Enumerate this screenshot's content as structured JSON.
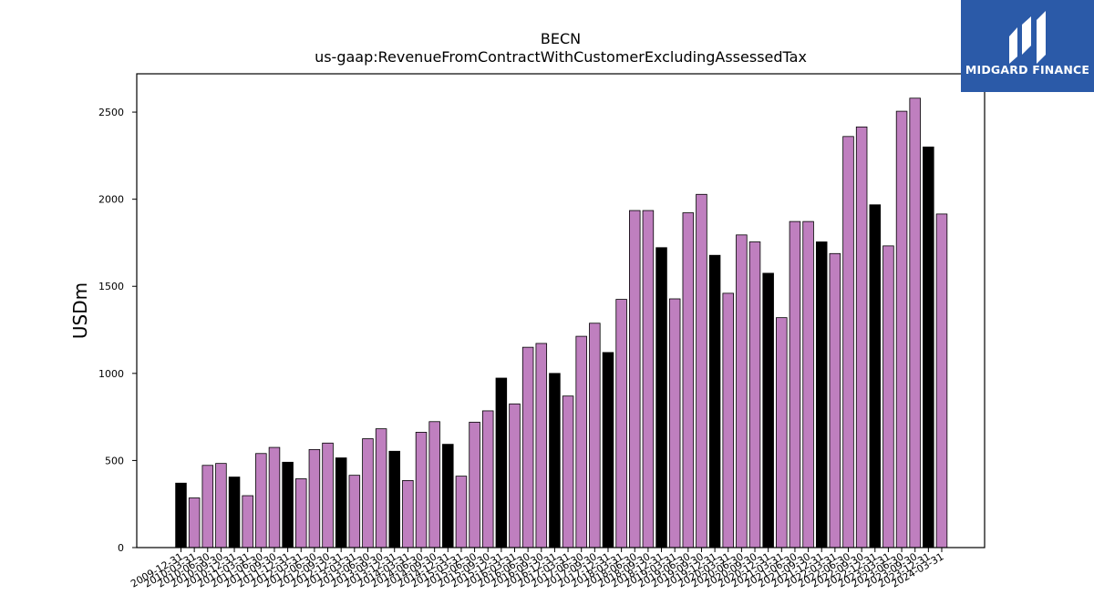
{
  "chart_data": {
    "type": "bar",
    "title": "BECN",
    "subtitle": "us-gaap:RevenueFromContractWithCustomerExcludingAssessedTax",
    "xlabel": "",
    "ylabel": "USDm",
    "ylim": [
      0,
      2720
    ],
    "yticks": [
      0,
      500,
      1000,
      1500,
      2000,
      2500
    ],
    "grid": false,
    "colors": {
      "quarter": "#bf7fbf",
      "annual": "#000000",
      "edge": "#000000"
    },
    "categories": [
      "2009-12-31",
      "2010-03-31",
      "2010-06-30",
      "2010-09-30",
      "2010-12-31",
      "2011-03-31",
      "2011-06-30",
      "2011-09-30",
      "2011-12-31",
      "2012-03-31",
      "2012-06-30",
      "2012-09-30",
      "2012-12-31",
      "2013-03-31",
      "2013-06-30",
      "2013-09-30",
      "2013-12-31",
      "2014-03-31",
      "2014-06-30",
      "2014-09-30",
      "2014-12-31",
      "2015-03-31",
      "2015-06-30",
      "2015-09-30",
      "2015-12-31",
      "2016-03-31",
      "2016-06-30",
      "2016-09-30",
      "2016-12-31",
      "2017-03-31",
      "2017-06-30",
      "2017-09-30",
      "2017-12-31",
      "2018-03-31",
      "2018-06-30",
      "2018-09-30",
      "2018-12-31",
      "2019-03-31",
      "2019-06-30",
      "2019-09-30",
      "2019-12-31",
      "2020-03-31",
      "2020-06-30",
      "2020-09-30",
      "2020-12-31",
      "2021-03-31",
      "2021-06-30",
      "2021-09-30",
      "2021-12-31",
      "2022-03-31",
      "2022-06-30",
      "2022-09-30",
      "2022-12-31",
      "2023-03-31",
      "2023-06-30",
      "2023-09-30",
      "2023-12-31",
      "2024-03-31"
    ],
    "values": [
      370,
      285,
      472,
      483,
      405,
      298,
      540,
      575,
      490,
      395,
      563,
      600,
      515,
      415,
      625,
      682,
      553,
      385,
      662,
      723,
      593,
      410,
      720,
      785,
      973,
      825,
      1150,
      1172,
      1000,
      870,
      1213,
      1288,
      1120,
      1425,
      1935,
      1935,
      1722,
      1428,
      1922,
      2028,
      1678,
      1460,
      1795,
      1755,
      1575,
      1320,
      1872,
      1872,
      1755,
      1688,
      2360,
      2415,
      1968,
      1732,
      2505,
      2580,
      2300,
      1915
    ],
    "annual": [
      true,
      false,
      false,
      false,
      true,
      false,
      false,
      false,
      true,
      false,
      false,
      false,
      true,
      false,
      false,
      false,
      true,
      false,
      false,
      false,
      true,
      false,
      false,
      false,
      true,
      false,
      false,
      false,
      true,
      false,
      false,
      false,
      true,
      false,
      false,
      false,
      true,
      false,
      false,
      false,
      true,
      false,
      false,
      false,
      true,
      false,
      false,
      false,
      true,
      false,
      false,
      false,
      true,
      false,
      false,
      false,
      true,
      false
    ]
  },
  "logo": {
    "text": "MIDGARD FINANCE"
  }
}
